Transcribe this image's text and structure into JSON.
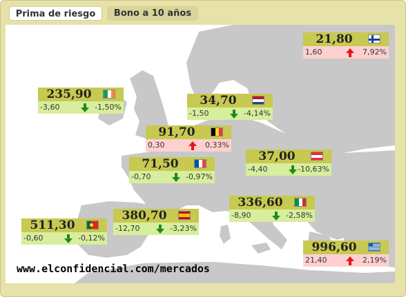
{
  "tabs": [
    "Prima de riesgo",
    "Bono a 10 años"
  ],
  "footer": "www.elconfidencial.com/mercados",
  "colors": {
    "frame": "#e6e2a8",
    "card_header": "#c7c951",
    "down_row": "#d7ee9c",
    "up_row": "#ffd0d0",
    "down_arrow": "#1f8a1f",
    "up_arrow": "#e01818"
  },
  "cards": [
    {
      "country": "finland",
      "value": "21,80",
      "change": "1,60",
      "percent": "7,92%",
      "direction": "up",
      "flag_icon": "finland-flag-icon"
    },
    {
      "country": "ireland",
      "value": "235,90",
      "change": "-3,60",
      "percent": "-1,50%",
      "direction": "down",
      "flag_icon": "ireland-flag-icon"
    },
    {
      "country": "netherlands",
      "value": "34,70",
      "change": "-1,50",
      "percent": "-4,14%",
      "direction": "down",
      "flag_icon": "netherlands-flag-icon"
    },
    {
      "country": "belgium",
      "value": "91,70",
      "change": "0,30",
      "percent": "0,33%",
      "direction": "up",
      "flag_icon": "belgium-flag-icon"
    },
    {
      "country": "austria",
      "value": "37,00",
      "change": "-4,40",
      "percent": "-10,63%",
      "direction": "down",
      "flag_icon": "austria-flag-icon"
    },
    {
      "country": "france",
      "value": "71,50",
      "change": "-0,70",
      "percent": "-0,97%",
      "direction": "down",
      "flag_icon": "france-flag-icon"
    },
    {
      "country": "italy",
      "value": "336,60",
      "change": "-8,90",
      "percent": "-2,58%",
      "direction": "down",
      "flag_icon": "italy-flag-icon"
    },
    {
      "country": "spain",
      "value": "380,70",
      "change": "-12,70",
      "percent": "-3,23%",
      "direction": "down",
      "flag_icon": "spain-flag-icon"
    },
    {
      "country": "portugal",
      "value": "511,30",
      "change": "-0,60",
      "percent": "-0,12%",
      "direction": "down",
      "flag_icon": "portugal-flag-icon"
    },
    {
      "country": "greece",
      "value": "996,60",
      "change": "21,40",
      "percent": "2,19%",
      "direction": "up",
      "flag_icon": "greece-flag-icon"
    }
  ]
}
